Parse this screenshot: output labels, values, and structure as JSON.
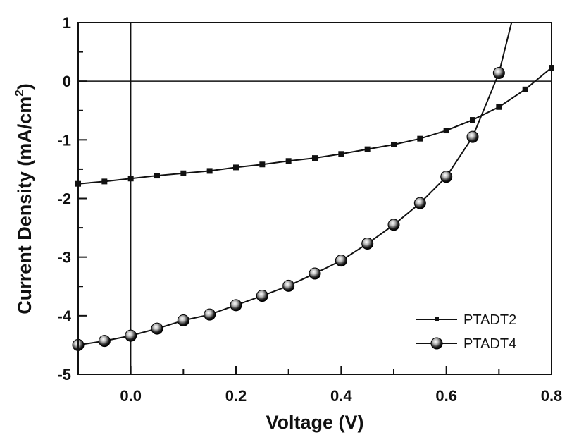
{
  "chart_data": {
    "type": "line",
    "xlabel": "Voltage (V)",
    "ylabel": "Current Density (mA/cm",
    "ylabel_sup": "2",
    "ylabel_close": ")",
    "xlim": [
      -0.1,
      0.8
    ],
    "ylim": [
      -5,
      1
    ],
    "xticks": [
      "0.0",
      "0.2",
      "0.4",
      "0.6",
      "0.8"
    ],
    "yticks": [
      "1",
      "0",
      "-1",
      "-2",
      "-3",
      "-4",
      "-5"
    ],
    "grid": false,
    "reference_lines": {
      "x": 0,
      "y": 0
    },
    "legend_position": "bottom-right",
    "series": [
      {
        "name": "PTADT2",
        "marker": "square",
        "x": [
          -0.1,
          -0.05,
          0,
          0.05,
          0.1,
          0.15,
          0.2,
          0.25,
          0.3,
          0.35,
          0.4,
          0.45,
          0.5,
          0.55,
          0.6,
          0.65,
          0.7,
          0.75,
          0.8
        ],
        "y": [
          -1.75,
          -1.71,
          -1.66,
          -1.61,
          -1.57,
          -1.53,
          -1.47,
          -1.42,
          -1.36,
          -1.31,
          -1.24,
          -1.16,
          -1.08,
          -0.98,
          -0.84,
          -0.66,
          -0.44,
          -0.14,
          0.23
        ]
      },
      {
        "name": "PTADT4",
        "marker": "sphere",
        "x": [
          -0.1,
          -0.05,
          0,
          0.05,
          0.1,
          0.15,
          0.2,
          0.25,
          0.3,
          0.35,
          0.4,
          0.45,
          0.5,
          0.55,
          0.6,
          0.65,
          0.7
        ],
        "y": [
          -4.5,
          -4.43,
          -4.34,
          -4.22,
          -4.08,
          -3.98,
          -3.82,
          -3.66,
          -3.49,
          -3.28,
          -3.06,
          -2.77,
          -2.45,
          -2.08,
          -1.63,
          -0.95,
          0.14
        ],
        "line_end": [
          0.724,
          1.0
        ]
      }
    ]
  }
}
